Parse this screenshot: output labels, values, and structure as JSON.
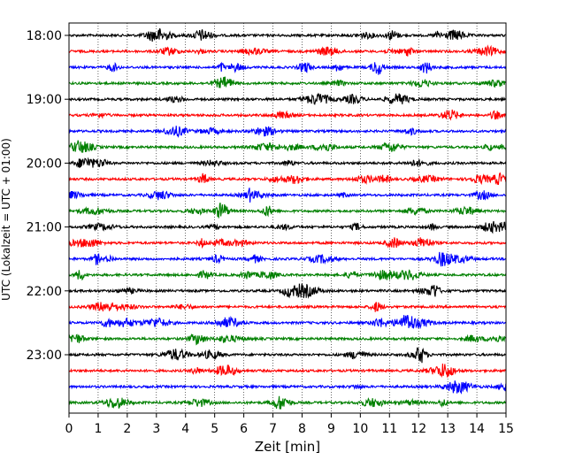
{
  "chart_data": {
    "type": "line",
    "title": "",
    "xlabel": "Zeit  [min]",
    "ylabel": "UTC (Lokalzeit = UTC + 01:00)",
    "xlim": [
      0,
      15
    ],
    "x_ticks": [
      0,
      1,
      2,
      3,
      4,
      5,
      6,
      7,
      8,
      9,
      10,
      11,
      12,
      13,
      14,
      15
    ],
    "x_grid": true,
    "y_tick_labels": [
      "18:00",
      "19:00",
      "20:00",
      "21:00",
      "22:00",
      "23:00"
    ],
    "trace_interval_min": 15,
    "colors": [
      "#000000",
      "#ff0000",
      "#0000ff",
      "#008000"
    ],
    "traces": [
      {
        "start": "18:00",
        "color": "#000000"
      },
      {
        "start": "18:15",
        "color": "#ff0000"
      },
      {
        "start": "18:30",
        "color": "#0000ff"
      },
      {
        "start": "18:45",
        "color": "#008000"
      },
      {
        "start": "19:00",
        "color": "#000000"
      },
      {
        "start": "19:15",
        "color": "#ff0000"
      },
      {
        "start": "19:30",
        "color": "#0000ff"
      },
      {
        "start": "19:45",
        "color": "#008000"
      },
      {
        "start": "20:00",
        "color": "#000000"
      },
      {
        "start": "20:15",
        "color": "#ff0000"
      },
      {
        "start": "20:30",
        "color": "#0000ff"
      },
      {
        "start": "20:45",
        "color": "#008000"
      },
      {
        "start": "21:00",
        "color": "#000000"
      },
      {
        "start": "21:15",
        "color": "#ff0000"
      },
      {
        "start": "21:30",
        "color": "#0000ff"
      },
      {
        "start": "21:45",
        "color": "#008000"
      },
      {
        "start": "22:00",
        "color": "#000000"
      },
      {
        "start": "22:15",
        "color": "#ff0000"
      },
      {
        "start": "22:30",
        "color": "#0000ff"
      },
      {
        "start": "22:45",
        "color": "#008000"
      },
      {
        "start": "23:00",
        "color": "#000000"
      },
      {
        "start": "23:15",
        "color": "#ff0000"
      },
      {
        "start": "23:30",
        "color": "#0000ff"
      },
      {
        "start": "23:45",
        "color": "#008000"
      }
    ]
  }
}
